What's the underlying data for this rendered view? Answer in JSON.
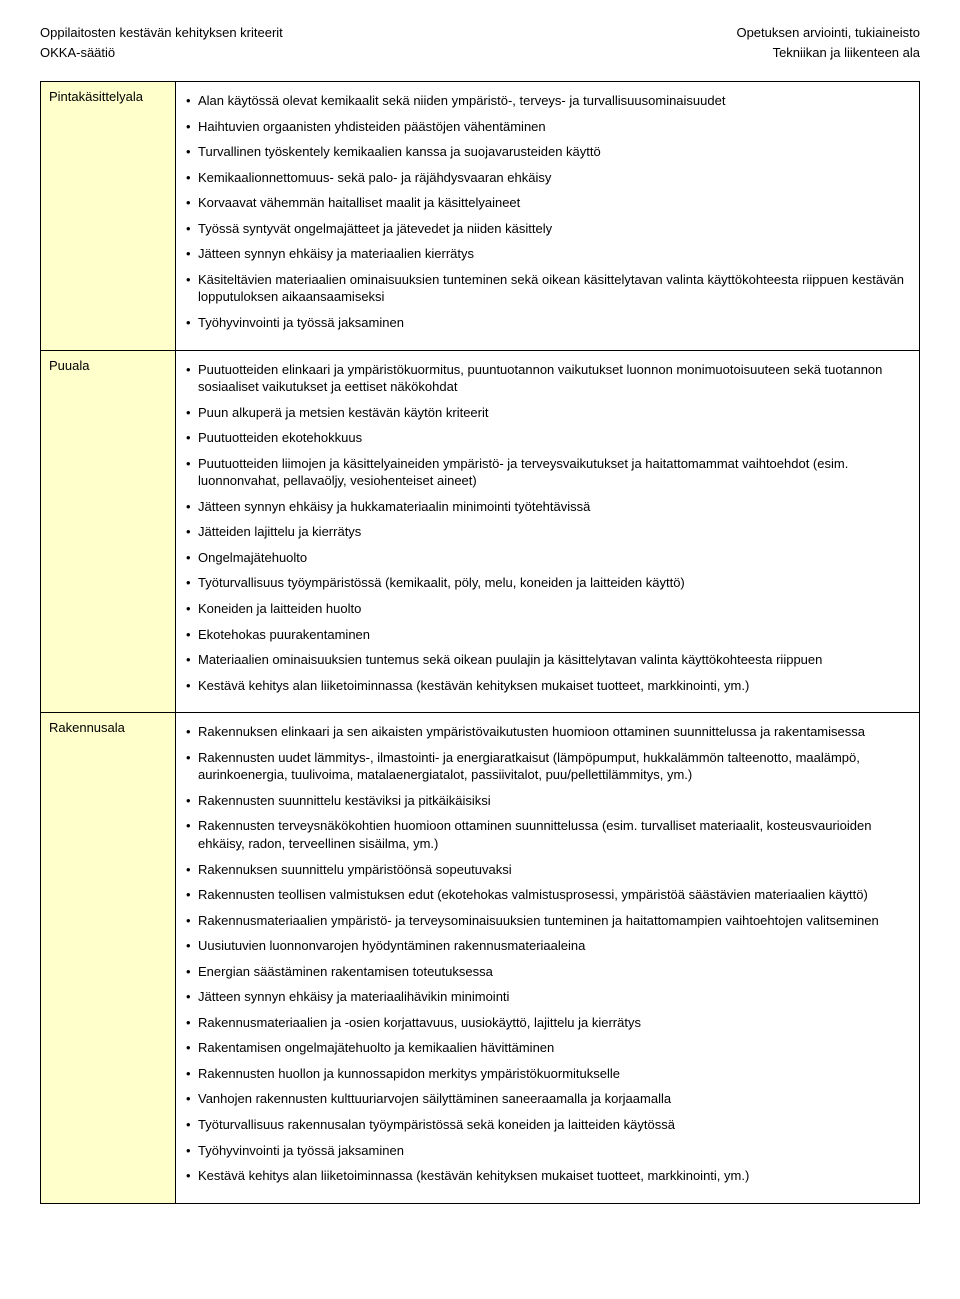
{
  "header": {
    "left1": "Oppilaitosten kestävän kehityksen kriteerit",
    "right1": "Opetuksen arviointi, tukiaineisto",
    "left2": "OKKA-säätiö",
    "right2": "Tekniikan ja liikenteen ala"
  },
  "colors": {
    "label_bg": "#ffffcc",
    "border": "#000000",
    "text": "#000000",
    "page_bg": "#ffffff"
  },
  "sections": [
    {
      "label": "Pintakäsittelyala",
      "items": [
        "Alan käytössä olevat kemikaalit sekä niiden ympäristö-, terveys- ja turvallisuusominaisuudet",
        "Haihtuvien orgaanisten yhdisteiden päästöjen vähentäminen",
        "Turvallinen työskentely kemikaalien kanssa ja suojavarusteiden käyttö",
        "Kemikaalionnettomuus- sekä palo- ja räjähdysvaaran ehkäisy",
        "Korvaavat vähemmän haitalliset maalit ja käsittelyaineet",
        "Työssä syntyvät ongelmajätteet ja jätevedet ja niiden käsittely",
        "Jätteen synnyn ehkäisy ja materiaalien kierrätys",
        "Käsiteltävien materiaalien ominaisuuksien tunteminen sekä oikean käsittelytavan valinta käyttökohteesta riippuen kestävän lopputuloksen aikaansaamiseksi",
        "Työhyvinvointi ja työssä jaksaminen"
      ]
    },
    {
      "label": "Puuala",
      "items": [
        "Puutuotteiden elinkaari ja ympäristökuormitus, puuntuotannon vaikutukset luonnon monimuotoisuuteen sekä tuotannon sosiaaliset vaikutukset ja eettiset näkökohdat",
        "Puun alkuperä ja metsien kestävän käytön kriteerit",
        "Puutuotteiden ekotehokkuus",
        "Puutuotteiden liimojen ja käsittelyaineiden ympäristö- ja terveysvaikutukset ja haitattomammat vaihtoehdot (esim. luonnonvahat, pellavaöljy, vesiohenteiset aineet)",
        "Jätteen synnyn ehkäisy ja hukkamateriaalin minimointi työtehtävissä",
        "Jätteiden lajittelu ja kierrätys",
        "Ongelmajätehuolto",
        "Työturvallisuus työympäristössä (kemikaalit, pöly, melu, koneiden ja laitteiden käyttö)",
        "Koneiden ja laitteiden huolto",
        "Ekotehokas puurakentaminen",
        "Materiaalien ominaisuuksien tuntemus sekä oikean puulajin ja käsittelytavan valinta käyttökohteesta riippuen",
        "Kestävä kehitys alan liiketoiminnassa (kestävän kehityksen mukaiset tuotteet, markkinointi, ym.)"
      ]
    },
    {
      "label": "Rakennusala",
      "items": [
        "Rakennuksen elinkaari ja sen aikaisten ympäristövaikutusten huomioon ottaminen suunnittelussa ja rakentamisessa",
        "Rakennusten uudet lämmitys-, ilmastointi- ja energiaratkaisut (lämpöpumput, hukkalämmön talteenotto, maalämpö, aurinkoenergia, tuulivoima, matalaenergiatalot, passiivitalot, puu/pellettilämmitys, ym.)",
        "Rakennusten suunnittelu kestäviksi ja pitkäikäisiksi",
        "Rakennusten terveysnäkökohtien huomioon ottaminen suunnittelussa (esim. turvalliset materiaalit, kosteusvaurioiden ehkäisy, radon, terveellinen sisäilma, ym.)",
        "Rakennuksen suunnittelu ympäristöönsä sopeutuvaksi",
        "Rakennusten teollisen valmistuksen edut (ekotehokas valmistusprosessi, ympäristöä säästävien materiaalien käyttö)",
        "Rakennusmateriaalien ympäristö- ja terveysominaisuuksien tunteminen ja haitattomampien vaihtoehtojen valitseminen",
        "Uusiutuvien luonnonvarojen hyödyntäminen rakennusmateriaaleina",
        "Energian säästäminen rakentamisen toteutuksessa",
        "Jätteen synnyn ehkäisy ja materiaalihävikin minimointi",
        "Rakennusmateriaalien ja -osien korjattavuus, uusiokäyttö, lajittelu ja kierrätys",
        "Rakentamisen ongelmajätehuolto ja kemikaalien hävittäminen",
        "Rakennusten huollon ja kunnossapidon merkitys ympäristökuormitukselle",
        "Vanhojen rakennusten kulttuuriarvojen säilyttäminen saneeraamalla ja korjaamalla",
        "Työturvallisuus rakennusalan työympäristössä sekä koneiden ja laitteiden käytössä",
        "Työhyvinvointi ja työssä jaksaminen",
        "Kestävä kehitys alan liiketoiminnassa (kestävän kehityksen mukaiset tuotteet, markkinointi, ym.)"
      ]
    }
  ]
}
